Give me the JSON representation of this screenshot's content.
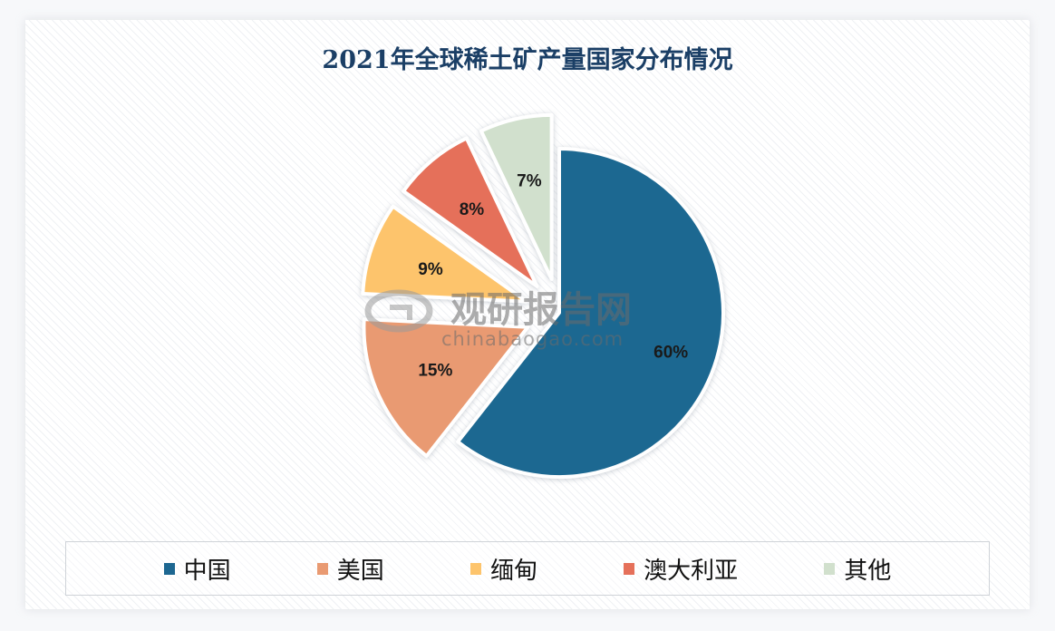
{
  "chart_data": {
    "type": "pie",
    "title": "2021年全球稀土矿产量国家分布情况",
    "categories": [
      "中国",
      "美国",
      "缅甸",
      "澳大利亚",
      "其他"
    ],
    "values": [
      60,
      15,
      9,
      8,
      7
    ],
    "labels": [
      "60%",
      "15%",
      "9%",
      "8%",
      "7%"
    ],
    "colors": [
      "#1d6791",
      "#e99a72",
      "#fdc46c",
      "#e5705a",
      "#d1e0cd"
    ],
    "exploded": [
      false,
      true,
      true,
      true,
      true
    ],
    "legend_position": "bottom"
  },
  "title": "2021年全球稀土矿产量国家分布情况",
  "legend": [
    {
      "label": "中国",
      "color": "#1d6791"
    },
    {
      "label": "美国",
      "color": "#e99a72"
    },
    {
      "label": "缅甸",
      "color": "#fdc46c"
    },
    {
      "label": "澳大利亚",
      "color": "#e5705a"
    },
    {
      "label": "其他",
      "color": "#d1e0cd"
    }
  ],
  "watermark": {
    "name": "观研报告网",
    "url": "chinabaogao.com"
  }
}
